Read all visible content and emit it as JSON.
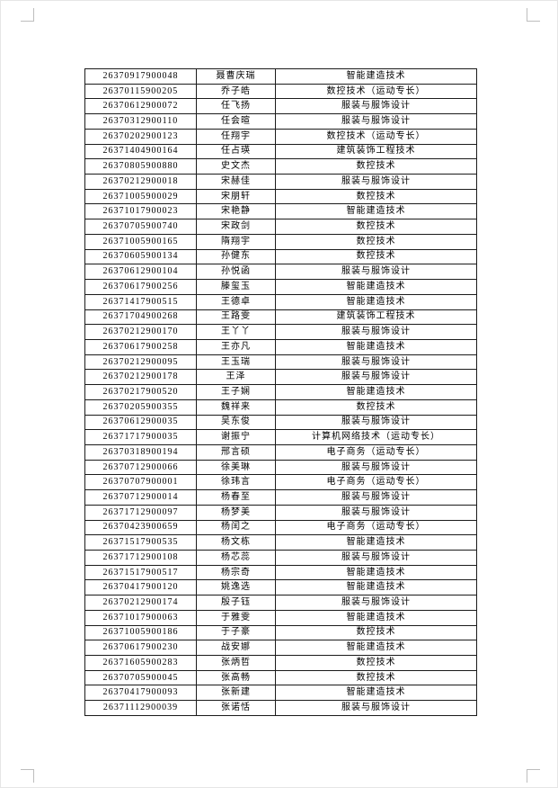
{
  "page": {
    "background_color": "#ffffff",
    "crop_mark_color": "#bdbdbd",
    "table_border_color": "#1b1b1b"
  },
  "table": {
    "rows": [
      [
        "26370917900048",
        "聂曹庆瑞",
        "智能建造技术"
      ],
      [
        "26370115900205",
        "乔子皓",
        "数控技术（运动专长）"
      ],
      [
        "26370612900072",
        "任飞扬",
        "服装与服饰设计"
      ],
      [
        "26370312900110",
        "任会暄",
        "服装与服饰设计"
      ],
      [
        "26370202900123",
        "任翔宇",
        "数控技术（运动专长）"
      ],
      [
        "26371404900164",
        "任占瑛",
        "建筑装饰工程技术"
      ],
      [
        "26370805900880",
        "史文杰",
        "数控技术"
      ],
      [
        "26370212900018",
        "宋赫佳",
        "服装与服饰设计"
      ],
      [
        "26371005900029",
        "宋朋轩",
        "数控技术"
      ],
      [
        "26371017900023",
        "宋艳静",
        "智能建造技术"
      ],
      [
        "26370705900740",
        "宋政剑",
        "数控技术"
      ],
      [
        "26371005900165",
        "隋翔宇",
        "数控技术"
      ],
      [
        "26370605900134",
        "孙健东",
        "数控技术"
      ],
      [
        "26370612900104",
        "孙悦函",
        "服装与服饰设计"
      ],
      [
        "26370617900256",
        "滕玺玉",
        "智能建造技术"
      ],
      [
        "26371417900515",
        "王德卓",
        "智能建造技术"
      ],
      [
        "26371704900268",
        "王路雯",
        "建筑装饰工程技术"
      ],
      [
        "26370212900170",
        "王丫丫",
        "服装与服饰设计"
      ],
      [
        "26370617900258",
        "王亦凡",
        "智能建造技术"
      ],
      [
        "26370212900095",
        "王玉瑞",
        "服装与服饰设计"
      ],
      [
        "26370212900178",
        "王泽",
        "服装与服饰设计"
      ],
      [
        "26370217900520",
        "王子娴",
        "智能建造技术"
      ],
      [
        "26370205900355",
        "魏祥来",
        "数控技术"
      ],
      [
        "26370612900035",
        "吴东俊",
        "服装与服饰设计"
      ],
      [
        "26371717900035",
        "谢振宁",
        "计算机网络技术（运动专长）"
      ],
      [
        "26370318900194",
        "邢言硕",
        "电子商务（运动专长）"
      ],
      [
        "26370712900066",
        "徐美琳",
        "服装与服饰设计"
      ],
      [
        "26370707900001",
        "徐玮言",
        "电子商务（运动专长）"
      ],
      [
        "26370712900014",
        "杨春至",
        "服装与服饰设计"
      ],
      [
        "26371712900097",
        "杨梦美",
        "服装与服饰设计"
      ],
      [
        "26370423900659",
        "杨闰之",
        "电子商务（运动专长）"
      ],
      [
        "26371517900535",
        "杨文栋",
        "智能建造技术"
      ],
      [
        "26371712900108",
        "杨芯蕊",
        "服装与服饰设计"
      ],
      [
        "26371517900517",
        "杨宗奇",
        "智能建造技术"
      ],
      [
        "26370417900120",
        "姚逸选",
        "智能建造技术"
      ],
      [
        "26370212900174",
        "殷子钰",
        "服装与服饰设计"
      ],
      [
        "26371017900063",
        "于雅雯",
        "智能建造技术"
      ],
      [
        "26371005900186",
        "于子豪",
        "数控技术"
      ],
      [
        "26370617900230",
        "战安娜",
        "智能建造技术"
      ],
      [
        "26371605900283",
        "张炳哲",
        "数控技术"
      ],
      [
        "26370705900045",
        "张高畅",
        "数控技术"
      ],
      [
        "26370417900093",
        "张新建",
        "智能建造技术"
      ],
      [
        "26371112900039",
        "张诺恬",
        "服装与服饰设计"
      ]
    ]
  }
}
